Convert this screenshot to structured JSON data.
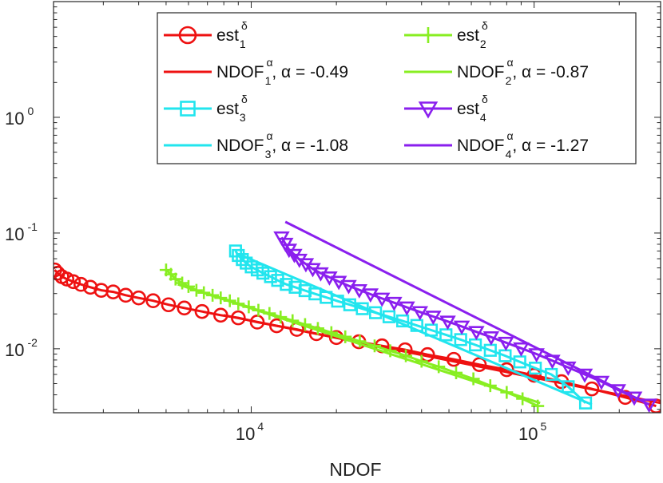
{
  "chart_data": {
    "type": "line",
    "xscale": "log",
    "yscale": "log",
    "xlabel": "NDOF",
    "ylabel": "",
    "xlim": [
      2000,
      280000
    ],
    "ylim": [
      0.0028,
      10
    ],
    "x_ticks": [
      {
        "value": 10000,
        "base": "10",
        "exp": "4"
      },
      {
        "value": 100000,
        "base": "10",
        "exp": "5"
      }
    ],
    "y_ticks": [
      {
        "value": 1,
        "base": "10",
        "exp": "0"
      },
      {
        "value": 0.1,
        "base": "10",
        "exp": "-1"
      },
      {
        "value": 0.01,
        "base": "10",
        "exp": "-2"
      }
    ],
    "grid": false,
    "legend_position": "top-right",
    "series": [
      {
        "name": "est",
        "sup": "δ",
        "sub": "1",
        "suffix": "",
        "color": "#ee1111",
        "marker": "circle",
        "kind": "data",
        "x": [
          2020,
          2070,
          2140,
          2230,
          2350,
          2500,
          2700,
          2950,
          3250,
          3600,
          4000,
          4500,
          5100,
          5800,
          6700,
          7800,
          9000,
          10500,
          12300,
          14500,
          17000,
          20000,
          24000,
          29000,
          35000,
          42000,
          52000,
          64000,
          80000,
          100000,
          125000,
          160000,
          210000,
          270000
        ],
        "y": [
          0.048,
          0.045,
          0.042,
          0.04,
          0.038,
          0.036,
          0.034,
          0.032,
          0.031,
          0.029,
          0.0275,
          0.026,
          0.024,
          0.0225,
          0.021,
          0.0195,
          0.0185,
          0.017,
          0.0158,
          0.0147,
          0.0135,
          0.0125,
          0.0115,
          0.0106,
          0.0098,
          0.0089,
          0.0081,
          0.0073,
          0.0066,
          0.0059,
          0.0052,
          0.0045,
          0.0038,
          0.0032
        ]
      },
      {
        "name": "NDOF",
        "sup": "α",
        "sub": "1",
        "suffix": ", α = -0.49",
        "color": "#ee1111",
        "marker": "none",
        "kind": "fit",
        "x": [
          8000,
          280000
        ],
        "y": [
          0.0195,
          0.0034
        ]
      },
      {
        "name": "est",
        "sup": "δ",
        "sub": "2",
        "suffix": "",
        "color": "#88ee22",
        "marker": "plus",
        "kind": "data",
        "x": [
          5000,
          5200,
          5400,
          5700,
          6000,
          6400,
          6800,
          7300,
          7800,
          8400,
          9000,
          9800,
          10600,
          11600,
          12700,
          14000,
          15500,
          17200,
          19200,
          21500,
          24200,
          27300,
          31000,
          35200,
          40000,
          46000,
          53000,
          61000,
          70000,
          80000,
          91000,
          103000
        ],
        "y": [
          0.048,
          0.044,
          0.04,
          0.037,
          0.0345,
          0.032,
          0.0305,
          0.029,
          0.0275,
          0.026,
          0.0245,
          0.023,
          0.0215,
          0.0202,
          0.0188,
          0.0175,
          0.0162,
          0.015,
          0.0138,
          0.0127,
          0.0116,
          0.0106,
          0.0096,
          0.0087,
          0.0078,
          0.007,
          0.0062,
          0.0055,
          0.0048,
          0.0042,
          0.0037,
          0.0032
        ]
      },
      {
        "name": "NDOF",
        "sup": "α",
        "sub": "2",
        "suffix": ", α = -0.87",
        "color": "#88ee22",
        "marker": "none",
        "kind": "fit",
        "x": [
          5500,
          105000
        ],
        "y": [
          0.036,
          0.0034
        ]
      },
      {
        "name": "est",
        "sup": "δ",
        "sub": "3",
        "suffix": "",
        "color": "#22e5ee",
        "marker": "square",
        "kind": "data",
        "x": [
          8800,
          9000,
          9300,
          9600,
          10000,
          10500,
          11000,
          11700,
          12400,
          13300,
          14300,
          15500,
          16800,
          18400,
          20200,
          22300,
          24700,
          27500,
          30700,
          34300,
          38500,
          43300,
          48800,
          55000,
          62000,
          70000,
          79000,
          89000,
          101000,
          115000,
          132000,
          152000
        ],
        "y": [
          0.07,
          0.064,
          0.059,
          0.055,
          0.051,
          0.048,
          0.045,
          0.042,
          0.039,
          0.036,
          0.034,
          0.0318,
          0.0298,
          0.0278,
          0.0258,
          0.024,
          0.0222,
          0.0205,
          0.0189,
          0.0174,
          0.0159,
          0.0145,
          0.0132,
          0.012,
          0.0108,
          0.0097,
          0.0087,
          0.0077,
          0.0068,
          0.006,
          0.0047,
          0.0034
        ]
      },
      {
        "name": "NDOF",
        "sup": "α",
        "sub": "3",
        "suffix": ", α = -1.08",
        "color": "#22e5ee",
        "marker": "none",
        "kind": "fit",
        "x": [
          9000,
          160000
        ],
        "y": [
          0.066,
          0.0033
        ]
      },
      {
        "name": "est",
        "sup": "δ",
        "sub": "4",
        "suffix": "",
        "color": "#8a1fee",
        "marker": "triangle-down",
        "kind": "data",
        "x": [
          12800,
          13200,
          13600,
          14200,
          14800,
          15600,
          16500,
          17600,
          18900,
          20400,
          22100,
          24100,
          26400,
          29000,
          32000,
          35500,
          39500,
          44000,
          49500,
          55500,
          62500,
          70500,
          79500,
          90000,
          102000,
          116000,
          132000,
          151000,
          173000,
          198000,
          226000,
          255000
        ],
        "y": [
          0.092,
          0.081,
          0.072,
          0.065,
          0.059,
          0.054,
          0.049,
          0.045,
          0.0415,
          0.038,
          0.035,
          0.0322,
          0.0296,
          0.0272,
          0.025,
          0.0228,
          0.0208,
          0.019,
          0.0172,
          0.0156,
          0.014,
          0.0126,
          0.0113,
          0.0101,
          0.009,
          0.0079,
          0.0069,
          0.006,
          0.0052,
          0.0044,
          0.0038,
          0.0033
        ]
      },
      {
        "name": "NDOF",
        "sup": "α",
        "sub": "4",
        "suffix": ", α = -1.27",
        "color": "#8a1fee",
        "marker": "none",
        "kind": "fit",
        "x": [
          13200,
          255000
        ],
        "y": [
          0.125,
          0.0033
        ]
      }
    ]
  }
}
